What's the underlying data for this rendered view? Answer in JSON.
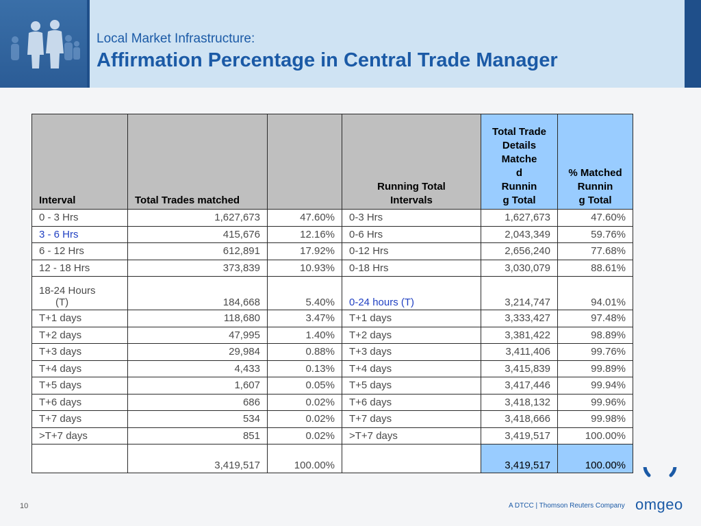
{
  "header": {
    "subtitle": "Local Market Infrastructure:",
    "title": "Affirmation Percentage in Central Trade Manager"
  },
  "table": {
    "headers": [
      "Interval",
      "Total Trades matched",
      "",
      "Running Total Intervals",
      "Total Trade Details Matched Running Total",
      "% Matched Running Total"
    ],
    "header_lines": {
      "col4": [
        "Running Total",
        "Intervals"
      ],
      "col5": [
        "Total Trade",
        "Details",
        "Matche",
        "d",
        "Runnin",
        "g Total"
      ],
      "col6": [
        "% Matched",
        "Runnin",
        "g Total"
      ]
    },
    "rows": [
      [
        "0 - 3 Hrs",
        "1,627,673",
        "47.60%",
        "0-3 Hrs",
        "1,627,673",
        "47.60%"
      ],
      [
        "3 - 6 Hrs",
        "415,676",
        "12.16%",
        "0-6 Hrs",
        "2,043,349",
        "59.76%"
      ],
      [
        "6 - 12 Hrs",
        "612,891",
        "17.92%",
        "0-12 Hrs",
        "2,656,240",
        "77.68%"
      ],
      [
        "12 - 18 Hrs",
        "373,839",
        "10.93%",
        "0-18 Hrs",
        "3,030,079",
        "88.61%"
      ],
      [
        "18-24 Hours (T)",
        "184,668",
        "5.40%",
        "0-24 hours (T)",
        "3,214,747",
        "94.01%"
      ],
      [
        "T+1 days",
        "118,680",
        "3.47%",
        "T+1 days",
        "3,333,427",
        "97.48%"
      ],
      [
        "T+2 days",
        "47,995",
        "1.40%",
        "T+2 days",
        "3,381,422",
        "98.89%"
      ],
      [
        "T+3 days",
        "29,984",
        "0.88%",
        "T+3 days",
        "3,411,406",
        "99.76%"
      ],
      [
        "T+4 days",
        "4,433",
        "0.13%",
        "T+4 days",
        "3,415,839",
        "99.89%"
      ],
      [
        "T+5 days",
        "1,607",
        "0.05%",
        "T+5 days",
        "3,417,446",
        "99.94%"
      ],
      [
        "T+6 days",
        "686",
        "0.02%",
        "T+6 days",
        "3,418,132",
        "99.96%"
      ],
      [
        "T+7 days",
        "534",
        "0.02%",
        "T+7 days",
        "3,418,666",
        "99.98%"
      ],
      [
        ">T+7 days",
        "851",
        "0.02%",
        ">T+7 days",
        "3,419,517",
        "100.00%"
      ]
    ],
    "row5_interval_lines": [
      "18-24 Hours",
      "(T)"
    ],
    "total": [
      "",
      "3,419,517",
      "100.00%",
      "",
      "3,419,517",
      "100.00%"
    ]
  },
  "footer": {
    "page_number": "10",
    "company": "A DTCC | Thomson Reuters Company",
    "logo_text": "omgeo"
  },
  "colors": {
    "header_band": "#cfe3f3",
    "title_blue": "#1b5aa6",
    "header_gray": "#bfbfbf",
    "header_blue": "#99ccff",
    "link_blue": "#1f3fc2"
  }
}
